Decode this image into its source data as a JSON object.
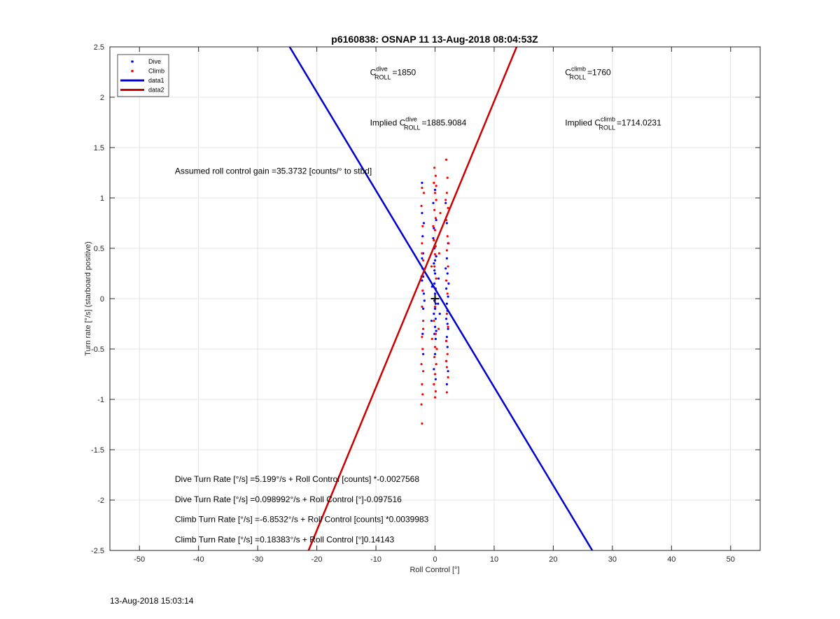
{
  "footer_timestamp": "13-Aug-2018 15:03:14",
  "chart_data": {
    "type": "scatter",
    "title": "p6160838: OSNAP 11 13-Aug-2018 08:04:53Z",
    "xlabel": "Roll Control [°]",
    "ylabel": "Turn rate [°/s] (starboard positive)",
    "xlim": [
      -55,
      55
    ],
    "ylim": [
      -2.5,
      2.5
    ],
    "xticks": [
      -50,
      -40,
      -30,
      -20,
      -10,
      0,
      10,
      20,
      30,
      40,
      50
    ],
    "yticks": [
      -2.5,
      -2,
      -1.5,
      -1,
      -0.5,
      0,
      0.5,
      1,
      1.5,
      2,
      2.5
    ],
    "grid": true,
    "legend_position": "top-left",
    "legend": [
      {
        "label": "Dive",
        "kind": "marker",
        "color": "#0000ff"
      },
      {
        "label": "Climb",
        "kind": "marker",
        "color": "#ff0000"
      },
      {
        "label": "data1",
        "kind": "line",
        "color": "#0000cc"
      },
      {
        "label": "data2",
        "kind": "line",
        "color": "#cc0000"
      }
    ],
    "lines": [
      {
        "name": "data1",
        "color": "#0000cc",
        "x": [
          -24.6,
          26.6
        ],
        "y": [
          2.5,
          -2.5
        ]
      },
      {
        "name": "data2",
        "color": "#cc0000",
        "x": [
          -21.4,
          13.8
        ],
        "y": [
          -2.5,
          2.5
        ]
      }
    ],
    "center_marker": {
      "x": 0,
      "y": 0,
      "symbol": "+"
    },
    "annotations": {
      "c_dive": {
        "prefix": "C",
        "sup": "dive",
        "sub": "ROLL",
        "value": "=1850",
        "x": -11,
        "y": 2.22
      },
      "c_climb": {
        "prefix": "C",
        "sup": "climb",
        "sub": "ROLL",
        "value": "=1760",
        "x": 22,
        "y": 2.22
      },
      "implied_dive": {
        "prefix": "Implied C",
        "sup": "dive",
        "sub": "ROLL",
        "value": "=1885.9084",
        "x": -11,
        "y": 1.72
      },
      "implied_climb": {
        "prefix": "Implied C",
        "sup": "climb",
        "sub": "ROLL",
        "value": "=1714.0231",
        "x": 22,
        "y": 1.72
      },
      "gain": {
        "text": "Assumed roll control gain =35.3732 [counts/° to stbd]",
        "x": -44,
        "y": 1.24
      },
      "fit1": {
        "text": "Dive Turn Rate [°/s] =5.199°/s + Roll Control [counts] *-0.0027568",
        "x": -44,
        "y": -1.82
      },
      "fit2": {
        "text": "Dive Turn Rate [°/s] =0.098992°/s + Roll Control [°]-0.097516",
        "x": -44,
        "y": -2.02
      },
      "fit3": {
        "text": "Climb Turn Rate [°/s] =-6.8532°/s + Roll Control [counts] *0.0039983",
        "x": -44,
        "y": -2.22
      },
      "fit4": {
        "text": "Climb Turn Rate [°/s] =0.18383°/s + Roll Control [°]0.14143",
        "x": -44,
        "y": -2.42
      }
    },
    "series": [
      {
        "name": "Dive",
        "color": "#0000ff",
        "points": [
          [
            -2.2,
            1.15
          ],
          [
            -2.2,
            0.85
          ],
          [
            -2.1,
            0.62
          ],
          [
            -2.0,
            0.45
          ],
          [
            -2.1,
            0.3
          ],
          [
            -2.2,
            0.18
          ],
          [
            -1.9,
            0.05
          ],
          [
            -2.0,
            -0.1
          ],
          [
            -2.1,
            -0.35
          ],
          [
            -2.0,
            -0.55
          ],
          [
            -1.9,
            0.75
          ],
          [
            -2.2,
            0.4
          ],
          [
            -2.0,
            0.22
          ],
          [
            -1.8,
            -0.02
          ],
          [
            -0.3,
            0.95
          ],
          [
            -0.2,
            0.7
          ],
          [
            -0.1,
            0.5
          ],
          [
            -0.2,
            0.35
          ],
          [
            0.0,
            0.25
          ],
          [
            -0.1,
            0.15
          ],
          [
            0.1,
            0.1
          ],
          [
            0.0,
            0.05
          ],
          [
            -0.1,
            -0.02
          ],
          [
            0.1,
            -0.05
          ],
          [
            0.0,
            -0.1
          ],
          [
            -0.2,
            -0.15
          ],
          [
            0.1,
            -0.2
          ],
          [
            0.0,
            -0.28
          ],
          [
            -0.1,
            -0.35
          ],
          [
            0.1,
            -0.4
          ],
          [
            0.0,
            -0.55
          ],
          [
            -0.2,
            -0.7
          ],
          [
            0.1,
            -0.8
          ],
          [
            0.0,
            0.38
          ],
          [
            0.2,
            0.42
          ],
          [
            -0.3,
            0.6
          ],
          [
            0.2,
            0.78
          ],
          [
            0.0,
            1.08
          ],
          [
            -0.1,
            0.28
          ],
          [
            0.2,
            -0.32
          ],
          [
            1.8,
            0.95
          ],
          [
            2.0,
            0.75
          ],
          [
            2.2,
            0.55
          ],
          [
            2.0,
            0.4
          ],
          [
            2.1,
            0.25
          ],
          [
            1.9,
            0.1
          ],
          [
            2.2,
            0.02
          ],
          [
            2.0,
            -0.05
          ],
          [
            2.1,
            -0.12
          ],
          [
            1.9,
            -0.2
          ],
          [
            2.2,
            -0.3
          ],
          [
            2.0,
            -0.38
          ],
          [
            2.1,
            -0.48
          ],
          [
            1.9,
            -0.62
          ],
          [
            2.2,
            -0.72
          ],
          [
            2.0,
            -0.85
          ],
          [
            1.8,
            0.3
          ],
          [
            2.3,
            0.15
          ],
          [
            2.1,
            -0.25
          ],
          [
            1.9,
            -0.42
          ],
          [
            0.6,
            0.2
          ],
          [
            0.5,
            -0.05
          ],
          [
            -0.5,
            0.12
          ],
          [
            -0.6,
            -0.22
          ],
          [
            0.8,
            -0.15
          ]
        ]
      },
      {
        "name": "Climb",
        "color": "#ff0000",
        "points": [
          [
            -2.2,
            1.1
          ],
          [
            -2.3,
            0.92
          ],
          [
            -2.1,
            0.72
          ],
          [
            -2.2,
            0.55
          ],
          [
            -2.0,
            0.38
          ],
          [
            -2.3,
            0.22
          ],
          [
            -2.1,
            0.08
          ],
          [
            -2.2,
            -0.08
          ],
          [
            -2.0,
            -0.22
          ],
          [
            -2.2,
            -0.38
          ],
          [
            -2.1,
            -0.5
          ],
          [
            -2.3,
            -0.65
          ],
          [
            -2.0,
            -0.72
          ],
          [
            -2.2,
            -0.85
          ],
          [
            -2.1,
            -0.95
          ],
          [
            -2.3,
            -1.05
          ],
          [
            -2.2,
            -1.24
          ],
          [
            -1.9,
            1.05
          ],
          [
            -2.0,
            -0.3
          ],
          [
            -2.2,
            0.45
          ],
          [
            -0.1,
            1.3
          ],
          [
            0.1,
            1.22
          ],
          [
            -0.2,
            1.15
          ],
          [
            0.0,
            1.05
          ],
          [
            0.2,
            0.98
          ],
          [
            -0.1,
            0.88
          ],
          [
            0.1,
            0.8
          ],
          [
            0.0,
            0.68
          ],
          [
            -0.2,
            0.58
          ],
          [
            0.1,
            0.52
          ],
          [
            0.0,
            0.44
          ],
          [
            -0.1,
            0.32
          ],
          [
            0.2,
            0.2
          ],
          [
            0.0,
            -0.08
          ],
          [
            -0.2,
            -0.22
          ],
          [
            0.1,
            -0.35
          ],
          [
            0.0,
            -0.48
          ],
          [
            -0.1,
            -0.58
          ],
          [
            0.2,
            -0.65
          ],
          [
            0.0,
            -0.75
          ],
          [
            -0.2,
            -0.85
          ],
          [
            0.1,
            -0.92
          ],
          [
            0.0,
            -0.98
          ],
          [
            0.2,
            1.12
          ],
          [
            -0.3,
            0.72
          ],
          [
            0.3,
            -0.5
          ],
          [
            1.9,
            1.38
          ],
          [
            2.1,
            1.2
          ],
          [
            2.0,
            1.05
          ],
          [
            2.2,
            0.9
          ],
          [
            1.9,
            0.78
          ],
          [
            2.1,
            0.62
          ],
          [
            2.0,
            0.48
          ],
          [
            2.2,
            0.32
          ],
          [
            1.9,
            0.18
          ],
          [
            2.1,
            0.05
          ],
          [
            2.0,
            -0.15
          ],
          [
            2.2,
            -0.28
          ],
          [
            1.9,
            -0.42
          ],
          [
            2.1,
            -0.55
          ],
          [
            2.0,
            -0.68
          ],
          [
            2.2,
            -0.78
          ],
          [
            2.0,
            -0.93
          ],
          [
            1.8,
            0.98
          ],
          [
            2.3,
            0.55
          ],
          [
            1.9,
            -0.62
          ],
          [
            0.7,
            0.45
          ],
          [
            -0.6,
            0.32
          ],
          [
            0.6,
            -0.3
          ],
          [
            -0.5,
            -0.4
          ],
          [
            0.9,
            0.85
          ]
        ]
      }
    ]
  }
}
